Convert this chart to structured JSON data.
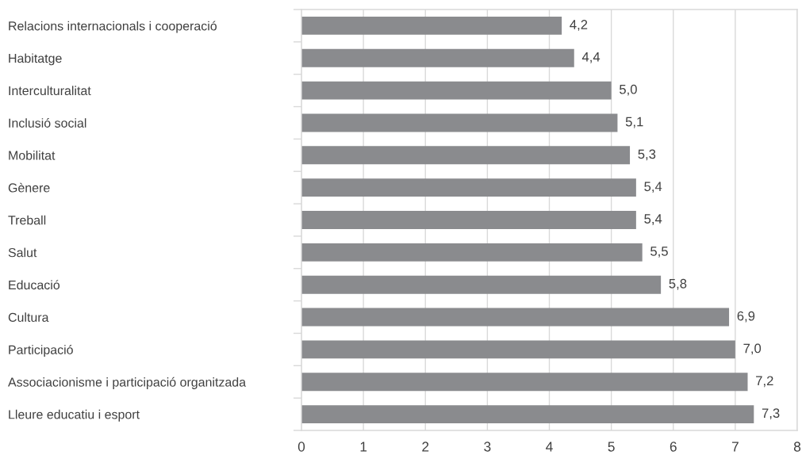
{
  "chart_data": {
    "type": "bar",
    "orientation": "horizontal",
    "categories": [
      "Relacions internacionals i cooperació",
      "Habitatge",
      "Interculturalitat",
      "Inclusió social",
      "Mobilitat",
      "Gènere",
      "Treball",
      "Salut",
      "Educació",
      "Cultura",
      "Participació",
      "Associacionisme i participació organitzada",
      "Lleure educatiu i esport"
    ],
    "values": [
      4.2,
      4.4,
      5.0,
      5.1,
      5.3,
      5.4,
      5.4,
      5.5,
      5.8,
      6.9,
      7.0,
      7.2,
      7.3
    ],
    "value_labels": [
      "4,2",
      "4,4",
      "5,0",
      "5,1",
      "5,3",
      "5,4",
      "5,4",
      "5,5",
      "5,8",
      "6,9",
      "7,0",
      "7,2",
      "7,3"
    ],
    "color": "#8a8b8e",
    "xlim": [
      0,
      8
    ],
    "xticks": [
      0,
      1,
      2,
      3,
      4,
      5,
      6,
      7,
      8
    ],
    "grid": "x"
  }
}
